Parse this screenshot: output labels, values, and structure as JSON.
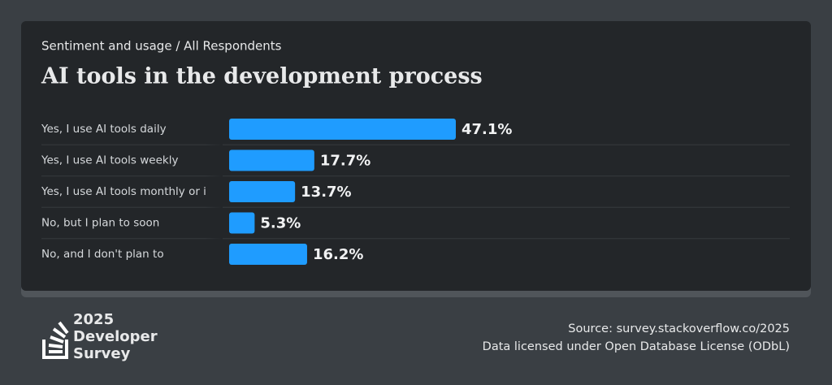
{
  "chart_data": {
    "type": "bar",
    "orientation": "horizontal",
    "subtitle": "Sentiment and usage / All Respondents",
    "title": "AI tools in the development process",
    "categories": [
      "Yes, I use AI tools daily",
      "Yes, I use AI tools weekly",
      "Yes, I use AI tools monthly or i",
      "No, but I plan to soon",
      "No, and I don't plan to"
    ],
    "values": [
      47.1,
      17.7,
      13.7,
      5.3,
      16.2
    ],
    "value_labels": [
      "47.1%",
      "17.7%",
      "13.7%",
      "5.3%",
      "16.2%"
    ],
    "color": "#1f9cff"
  },
  "footer": {
    "logo": [
      "2025",
      "Developer",
      "Survey"
    ],
    "source": "Source: survey.stackoverflow.co/2025",
    "license": "Data licensed under Open Database License (ODbL)"
  }
}
